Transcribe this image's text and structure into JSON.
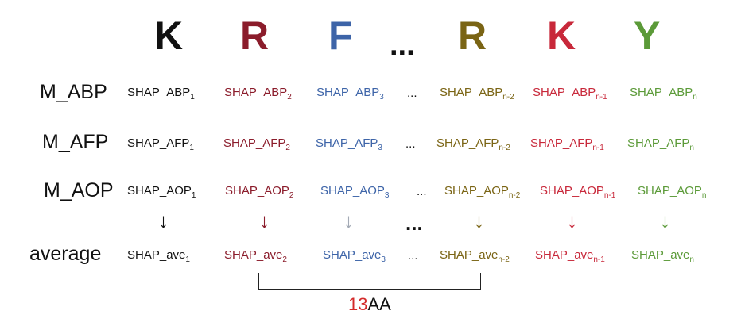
{
  "colors": {
    "c1": "#111111",
    "c2": "#8b1c2b",
    "c3": "#3d64a8",
    "cn2": "#7a6414",
    "cn1": "#c8283a",
    "cn": "#5b9a38",
    "gray_arrow": "#a3aab5",
    "accent_red": "#d42a2a"
  },
  "header": {
    "letters": [
      "K",
      "R",
      "F",
      "R",
      "K",
      "Y"
    ],
    "ellipsis": "..."
  },
  "rows": [
    {
      "label": "M_ABP",
      "cells": [
        {
          "text": "SHAP_ABP",
          "sub": "1"
        },
        {
          "text": "SHAP_ABP",
          "sub": "2"
        },
        {
          "text": "SHAP_ABP",
          "sub": "3"
        },
        {
          "text": "SHAP_ABP",
          "sub": "n-2"
        },
        {
          "text": "SHAP_ABP",
          "sub": "n-1"
        },
        {
          "text": "SHAP_ABP",
          "sub": "n"
        }
      ],
      "dots": "..."
    },
    {
      "label": "M_AFP",
      "cells": [
        {
          "text": "SHAP_AFP",
          "sub": "1"
        },
        {
          "text": "SHAP_AFP",
          "sub": "2"
        },
        {
          "text": "SHAP_AFP",
          "sub": "3"
        },
        {
          "text": "SHAP_AFP",
          "sub": "n-2"
        },
        {
          "text": "SHAP_AFP",
          "sub": "n-1"
        },
        {
          "text": "SHAP_AFP",
          "sub": "n"
        }
      ],
      "dots": "..."
    },
    {
      "label": "M_AOP",
      "cells": [
        {
          "text": "SHAP_AOP",
          "sub": "1"
        },
        {
          "text": "SHAP_AOP",
          "sub": "2"
        },
        {
          "text": "SHAP_AOP",
          "sub": "3"
        },
        {
          "text": "SHAP_AOP",
          "sub": "n-2"
        },
        {
          "text": "SHAP_AOP",
          "sub": "n-1"
        },
        {
          "text": "SHAP_AOP",
          "sub": "n"
        }
      ],
      "dots": "..."
    },
    {
      "label": "average",
      "cells": [
        {
          "text": "SHAP_ave",
          "sub": "1"
        },
        {
          "text": "SHAP_ave",
          "sub": "2"
        },
        {
          "text": "SHAP_ave",
          "sub": "3"
        },
        {
          "text": "SHAP_ave",
          "sub": "n-2"
        },
        {
          "text": "SHAP_ave",
          "sub": "n-1"
        },
        {
          "text": "SHAP_ave",
          "sub": "n"
        }
      ],
      "dots": "..."
    }
  ],
  "arrows": {
    "glyph": "↓",
    "between_dots": "..."
  },
  "window_label": {
    "number": "13",
    "unit": "AA"
  }
}
